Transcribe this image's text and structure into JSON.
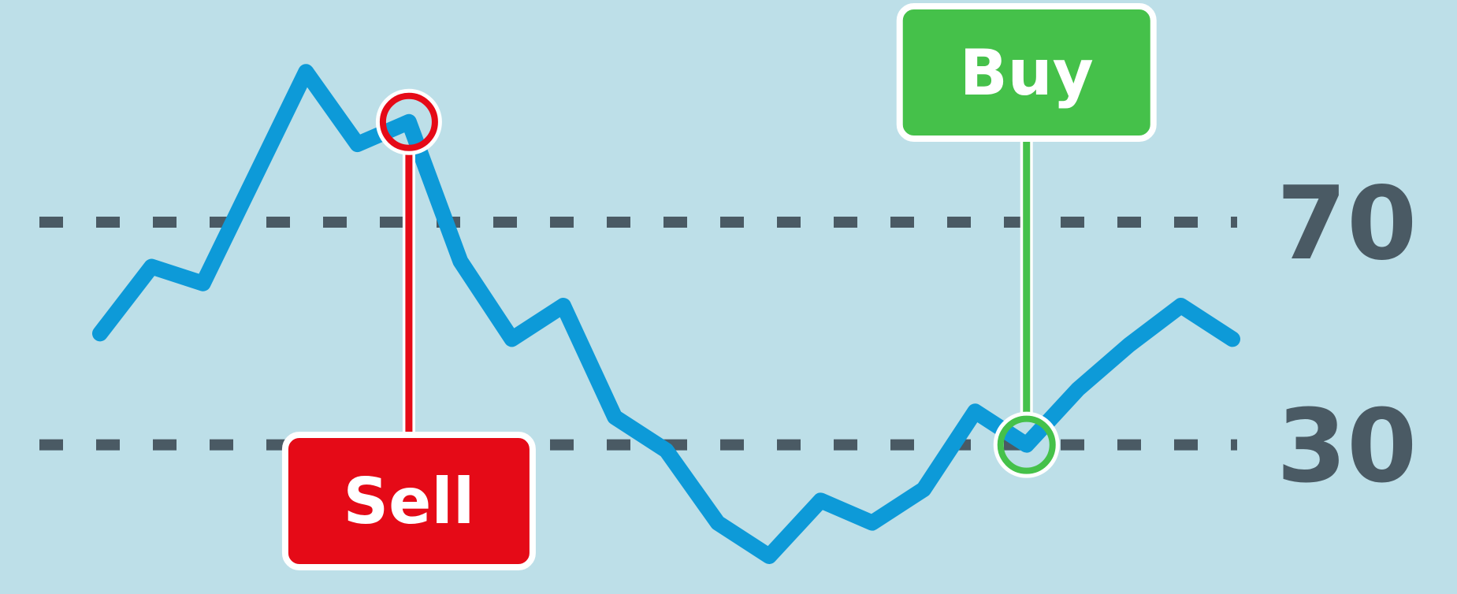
{
  "colors": {
    "background": "#bddfe8",
    "line": "#0d9ad8",
    "threshold": "#4a5a64",
    "sell": "#e50a17",
    "buy": "#45c14a",
    "outline": "#ffffff"
  },
  "chart_data": {
    "type": "line",
    "title": "",
    "xlabel": "",
    "ylabel": "",
    "ylim": [
      10,
      100
    ],
    "grid": false,
    "x": [
      0,
      1,
      2,
      3,
      4,
      5,
      6,
      7,
      8,
      9,
      10,
      11,
      12,
      13,
      14,
      15,
      16,
      17,
      18,
      19,
      20,
      21,
      22
    ],
    "series": [
      {
        "values": [
          50,
          62,
          59,
          78,
          97,
          84,
          88,
          63,
          49,
          55,
          35,
          29,
          16,
          10,
          20,
          16,
          22,
          36,
          30,
          40,
          48,
          55,
          49
        ]
      }
    ],
    "thresholds": [
      {
        "value": 70,
        "label": "70"
      },
      {
        "value": 30,
        "label": "30"
      }
    ],
    "annotations": [
      {
        "label": "Sell",
        "x": 6,
        "y": 88,
        "color_key": "sell",
        "box_side": "below"
      },
      {
        "label": "Buy",
        "x": 18,
        "y": 30,
        "color_key": "buy",
        "box_side": "above"
      }
    ]
  }
}
